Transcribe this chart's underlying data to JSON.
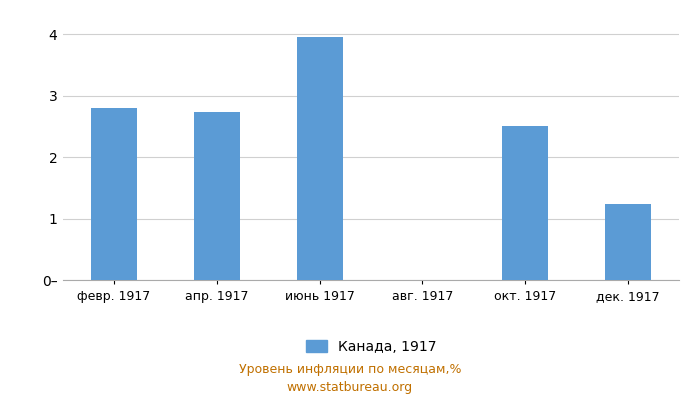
{
  "categories": [
    "февр. 1917",
    "апр. 1917",
    "июнь 1917",
    "авг. 1917",
    "окт. 1917",
    "дек. 1917"
  ],
  "values": [
    2.8,
    2.73,
    3.95,
    0,
    2.51,
    1.23
  ],
  "bar_color": "#5b9bd5",
  "ylim": [
    0,
    4.3
  ],
  "yticks": [
    0,
    1,
    2,
    3,
    4
  ],
  "ytick_labels": [
    "0–",
    "1",
    "2",
    "3",
    "4"
  ],
  "legend_label": "Канада, 1917",
  "footer_line1": "Уровень инфляции по месяцам,%",
  "footer_line2": "www.statbureau.org",
  "background_color": "#ffffff",
  "grid_color": "#d0d0d0",
  "footer_color": "#c07000"
}
